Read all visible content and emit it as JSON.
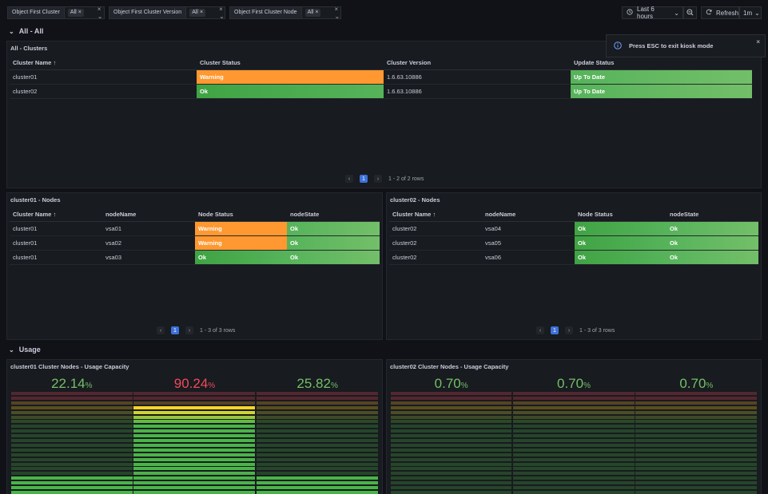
{
  "variables": [
    {
      "label": "Object First Cluster",
      "value": "All"
    },
    {
      "label": "Object First Cluster Version",
      "value": "All"
    },
    {
      "label": "Object First Cluster Node",
      "value": "All"
    }
  ],
  "time_picker": {
    "label": "Last 6 hours"
  },
  "refresh": {
    "label": "Refresh",
    "interval": "1m"
  },
  "toast": {
    "message": "Press ESC to exit kiosk mode"
  },
  "rows": {
    "all": "All - All",
    "usage": "Usage"
  },
  "clusters_panel": {
    "title": "All - Clusters",
    "columns": [
      "Cluster Name",
      "Cluster Status",
      "Cluster Version",
      "Update Status"
    ],
    "rows": [
      [
        "cluster01",
        "Warning",
        "1.6.63.10886",
        "Up To Date"
      ],
      [
        "cluster02",
        "Ok",
        "1.6.63.10886",
        "Up To Date"
      ]
    ],
    "page": "1",
    "summary": "1 - 2 of 2 rows"
  },
  "nodes1": {
    "title": "cluster01 - Nodes",
    "columns": [
      "Cluster Name",
      "nodeName",
      "Node Status",
      "nodeState"
    ],
    "rows": [
      [
        "cluster01",
        "vsa01",
        "Warning",
        "Ok"
      ],
      [
        "cluster01",
        "vsa02",
        "Warning",
        "Ok"
      ],
      [
        "cluster01",
        "vsa03",
        "Ok",
        "Ok"
      ]
    ],
    "page": "1",
    "summary": "1 - 3 of 3 rows"
  },
  "nodes2": {
    "title": "cluster02 - Nodes",
    "columns": [
      "Cluster Name",
      "nodeName",
      "Node Status",
      "nodeState"
    ],
    "rows": [
      [
        "cluster02",
        "vsa04",
        "Ok",
        "Ok"
      ],
      [
        "cluster02",
        "vsa05",
        "Ok",
        "Ok"
      ],
      [
        "cluster02",
        "vsa06",
        "Ok",
        "Ok"
      ]
    ],
    "page": "1",
    "summary": "1 - 3 of 3 rows"
  },
  "usage1": {
    "title": "cluster01 Cluster Nodes - Usage Capacity",
    "values": [
      {
        "value": "22.14",
        "unit": "%",
        "fraction": 0.2214,
        "color": "#73bf69"
      },
      {
        "value": "90.24",
        "unit": "%",
        "fraction": 0.9024,
        "color": "#f2495c"
      },
      {
        "value": "25.82",
        "unit": "%",
        "fraction": 0.2582,
        "color": "#73bf69"
      }
    ]
  },
  "usage2": {
    "title": "cluster02 Cluster Nodes - Usage Capacity",
    "values": [
      {
        "value": "0.70",
        "unit": "%",
        "fraction": 0.007,
        "color": "#73bf69"
      },
      {
        "value": "0.70",
        "unit": "%",
        "fraction": 0.007,
        "color": "#73bf69"
      },
      {
        "value": "0.70",
        "unit": "%",
        "fraction": 0.007,
        "color": "#73bf69"
      }
    ]
  },
  "colors": {
    "warning": "#ff9830",
    "ok": "#56b35a",
    "accent": "#3d71d9",
    "bad": "#f2495c"
  }
}
